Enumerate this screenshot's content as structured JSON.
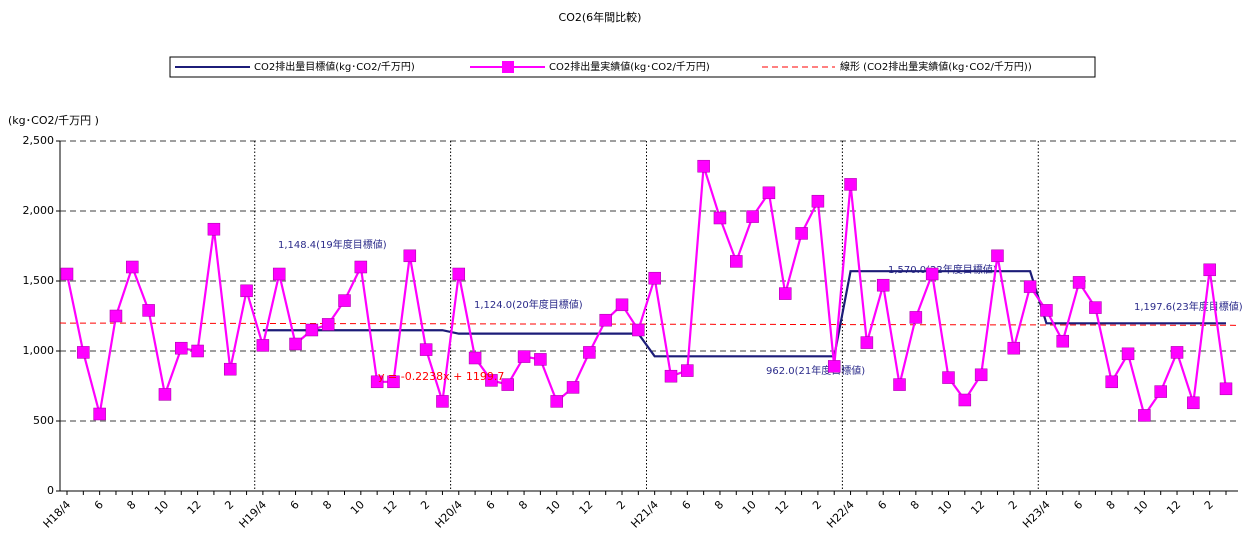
{
  "chart_data": {
    "type": "line",
    "title": "CO2(6年間比較)",
    "y_label": "(kg･CO2/千万円 )",
    "categories": [
      "H18/4",
      null,
      "6",
      null,
      "8",
      null,
      "10",
      null,
      "12",
      null,
      "2",
      null,
      "H19/4",
      null,
      "6",
      null,
      "8",
      null,
      "10",
      null,
      "12",
      null,
      "2",
      null,
      "H20/4",
      null,
      "6",
      null,
      "8",
      null,
      "10",
      null,
      "12",
      null,
      "2",
      null,
      "H21/4",
      null,
      "6",
      null,
      "8",
      null,
      "10",
      null,
      "12",
      null,
      "2",
      null,
      "H22/4",
      null,
      "6",
      null,
      "8",
      null,
      "10",
      null,
      "12",
      null,
      "2",
      null,
      "H23/4",
      null,
      "6",
      null,
      "8",
      null,
      "10",
      null,
      "12",
      null,
      "2",
      null
    ],
    "series": [
      {
        "name": "CO2排出量目標値(kg･CO2/千万円)",
        "color": "#1c1c78",
        "marker": false,
        "values": [
          null,
          null,
          null,
          null,
          null,
          null,
          null,
          null,
          null,
          null,
          null,
          null,
          1148.4,
          1148.4,
          1148.4,
          1148.4,
          1148.4,
          1148.4,
          1148.4,
          1148.4,
          1148.4,
          1148.4,
          1148.4,
          1148.4,
          1124.0,
          1124.0,
          1124.0,
          1124.0,
          1124.0,
          1124.0,
          1124.0,
          1124.0,
          1124.0,
          1124.0,
          1124.0,
          1124.0,
          962.0,
          962.0,
          962.0,
          962.0,
          962.0,
          962.0,
          962.0,
          962.0,
          962.0,
          962.0,
          962.0,
          962.0,
          1570.0,
          1570.0,
          1570.0,
          1570.0,
          1570.0,
          1570.0,
          1570.0,
          1570.0,
          1570.0,
          1570.0,
          1570.0,
          1570.0,
          1197.6,
          1197.6,
          1197.6,
          1197.6,
          1197.6,
          1197.6,
          1197.6,
          1197.6,
          1197.6,
          1197.6,
          1197.6,
          1197.6
        ]
      },
      {
        "name": "CO2排出量実績値(kg･CO2/千万円)",
        "color": "#ff00ff",
        "marker": true,
        "values": [
          1550,
          990,
          550,
          1250,
          1600,
          1290,
          690,
          1020,
          1000,
          1870,
          870,
          1430,
          1040,
          1550,
          1050,
          1150,
          1190,
          1360,
          1600,
          780,
          780,
          1680,
          1010,
          640,
          1550,
          950,
          790,
          760,
          960,
          940,
          640,
          740,
          990,
          1220,
          1330,
          1150,
          1520,
          820,
          860,
          2320,
          1950,
          1640,
          1960,
          2130,
          1410,
          1840,
          2070,
          890,
          2190,
          1060,
          1470,
          760,
          1240,
          1550,
          810,
          650,
          830,
          1680,
          1020,
          1460,
          1290,
          1070,
          1490,
          1310,
          780,
          980,
          540,
          710,
          990,
          630,
          1580,
          730
        ]
      }
    ],
    "trendline": {
      "name": "線形 (CO2排出量実績値(kg･CO2/千万円))",
      "color": "#ff0000",
      "slope": -0.2238,
      "intercept": 1199.7,
      "label": "y = -0.2238x + 1199.7"
    },
    "annotations": [
      "1,148.4(19年度目標値)",
      "1,124.0(20年度目標値)",
      "962.0(21年度目標値)",
      "1,570.0(22年度目標値)",
      "1,197.6(23年度目標値)"
    ],
    "ylim": [
      0,
      2500
    ],
    "yticks": [
      0,
      500,
      {
        "value": 1000,
        "label": "1,000"
      },
      {
        "value": 1500,
        "label": "1,500"
      },
      {
        "value": 2000,
        "label": "2,000"
      },
      {
        "value": 2500,
        "label": "2,500"
      }
    ],
    "grid": true,
    "legend": "top"
  }
}
